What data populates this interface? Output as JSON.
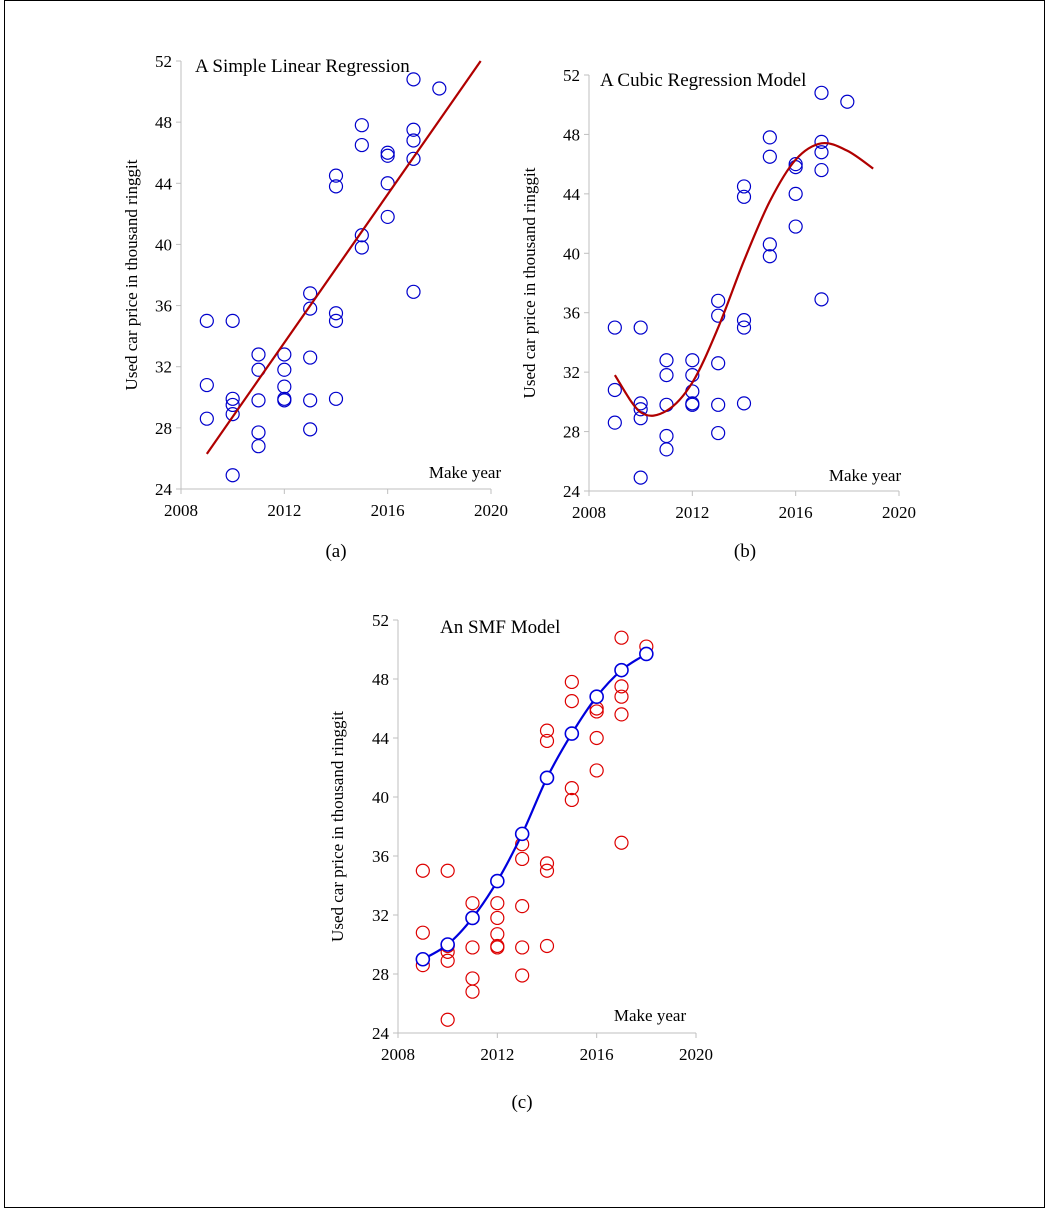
{
  "chart_data": [
    {
      "id": "a",
      "type": "scatter",
      "title": "A Simple Linear Regression",
      "xlabel": "Make year",
      "ylabel": "Used car price in thousand ringgit",
      "caption": "(a)",
      "xlim": [
        2008,
        2020
      ],
      "ylim": [
        24,
        52
      ],
      "xticks": [
        2008,
        2012,
        2016,
        2020
      ],
      "yticks": [
        24,
        28,
        32,
        36,
        40,
        44,
        48,
        52
      ],
      "grid": false,
      "points": {
        "color": "#0000cc",
        "x": [
          2009,
          2009,
          2009,
          2010,
          2010,
          2010,
          2010,
          2010,
          2011,
          2011,
          2011,
          2011,
          2011,
          2012,
          2012,
          2012,
          2012,
          2012,
          2013,
          2013,
          2013,
          2013,
          2013,
          2014,
          2014,
          2014,
          2014,
          2014,
          2015,
          2015,
          2015,
          2015,
          2016,
          2016,
          2016,
          2016,
          2017,
          2017,
          2017,
          2017,
          2017,
          2018
        ],
        "y": [
          35.0,
          30.8,
          28.6,
          35.0,
          29.9,
          29.5,
          28.9,
          24.9,
          32.8,
          31.8,
          29.8,
          27.7,
          26.8,
          32.8,
          31.8,
          30.7,
          29.9,
          29.8,
          36.8,
          35.8,
          32.6,
          29.8,
          27.9,
          44.5,
          43.8,
          35.5,
          35.0,
          29.9,
          47.8,
          46.5,
          40.6,
          39.8,
          46.0,
          45.8,
          44.0,
          41.8,
          50.8,
          47.5,
          46.8,
          45.6,
          36.9,
          50.2
        ]
      },
      "fit": {
        "kind": "linear",
        "color": "#b00000",
        "x": [
          2009,
          2019.6
        ],
        "y": [
          26.3,
          52.0
        ]
      }
    },
    {
      "id": "b",
      "type": "scatter",
      "title": "A Cubic Regression Model",
      "xlabel": "Make year",
      "ylabel": "Used car price in thousand  ringgit",
      "caption": "(b)",
      "xlim": [
        2008,
        2020
      ],
      "ylim": [
        24,
        52
      ],
      "xticks": [
        2008,
        2012,
        2016,
        2020
      ],
      "yticks": [
        24,
        28,
        32,
        36,
        40,
        44,
        48,
        52
      ],
      "grid": false,
      "points": {
        "color": "#0000cc",
        "x": [
          2009,
          2009,
          2009,
          2010,
          2010,
          2010,
          2010,
          2010,
          2011,
          2011,
          2011,
          2011,
          2011,
          2012,
          2012,
          2012,
          2012,
          2012,
          2013,
          2013,
          2013,
          2013,
          2013,
          2014,
          2014,
          2014,
          2014,
          2014,
          2015,
          2015,
          2015,
          2015,
          2016,
          2016,
          2016,
          2016,
          2017,
          2017,
          2017,
          2017,
          2017,
          2018
        ],
        "y": [
          35.0,
          30.8,
          28.6,
          35.0,
          29.9,
          29.5,
          28.9,
          24.9,
          32.8,
          31.8,
          29.8,
          27.7,
          26.8,
          32.8,
          31.8,
          30.7,
          29.9,
          29.8,
          36.8,
          35.8,
          32.6,
          29.8,
          27.9,
          44.5,
          43.8,
          35.5,
          35.0,
          29.9,
          47.8,
          46.5,
          40.6,
          39.8,
          46.0,
          45.8,
          44.0,
          41.8,
          50.8,
          47.5,
          46.8,
          45.6,
          36.9,
          50.2
        ]
      },
      "fit": {
        "kind": "cubic",
        "color": "#b00000",
        "x": [
          2009,
          2010,
          2011,
          2012,
          2013,
          2014,
          2015,
          2016,
          2017,
          2018,
          2019
        ],
        "y": [
          31.8,
          29.3,
          29.4,
          31.3,
          35.0,
          39.5,
          43.5,
          46.3,
          47.4,
          46.9,
          45.7
        ]
      }
    },
    {
      "id": "c",
      "type": "scatter",
      "title": "An SMF Model",
      "xlabel": "Make year",
      "ylabel": "Used car price in thousand ringgit",
      "caption": "(c)",
      "xlim": [
        2008,
        2020
      ],
      "ylim": [
        24,
        52
      ],
      "xticks": [
        2008,
        2012,
        2016,
        2020
      ],
      "yticks": [
        24,
        28,
        32,
        36,
        40,
        44,
        48,
        52
      ],
      "grid": false,
      "points": {
        "color": "#dd0000",
        "x": [
          2009,
          2009,
          2009,
          2010,
          2010,
          2010,
          2010,
          2010,
          2011,
          2011,
          2011,
          2011,
          2011,
          2012,
          2012,
          2012,
          2012,
          2012,
          2013,
          2013,
          2013,
          2013,
          2013,
          2014,
          2014,
          2014,
          2014,
          2014,
          2015,
          2015,
          2015,
          2015,
          2016,
          2016,
          2016,
          2016,
          2017,
          2017,
          2017,
          2017,
          2017,
          2018
        ],
        "y": [
          35.0,
          30.8,
          28.6,
          35.0,
          29.9,
          29.5,
          28.9,
          24.9,
          32.8,
          31.8,
          29.8,
          27.7,
          26.8,
          32.8,
          31.8,
          30.7,
          29.9,
          29.8,
          36.8,
          35.8,
          32.6,
          29.8,
          27.9,
          44.5,
          43.8,
          35.5,
          35.0,
          29.9,
          47.8,
          46.5,
          40.6,
          39.8,
          46.0,
          45.8,
          44.0,
          41.8,
          50.8,
          47.5,
          46.8,
          45.6,
          36.9,
          50.2
        ]
      },
      "fit": {
        "kind": "smf",
        "color": "#0000dd",
        "marker": "circle",
        "x": [
          2009,
          2010,
          2011,
          2012,
          2013,
          2014,
          2015,
          2016,
          2017,
          2018
        ],
        "y": [
          29.0,
          30.0,
          31.8,
          34.3,
          37.5,
          41.3,
          44.3,
          46.8,
          48.6,
          49.7
        ]
      }
    }
  ]
}
